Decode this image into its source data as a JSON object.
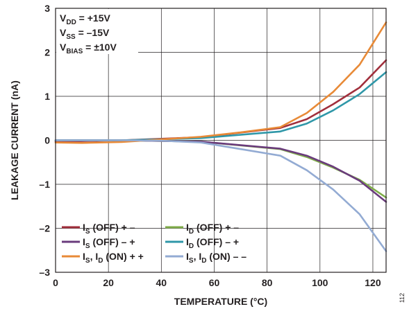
{
  "chart_data": {
    "type": "line",
    "xlabel": "TEMPERATURE (°C)",
    "ylabel": "LEAKAGE CURRENT (nA)",
    "xlim": [
      0,
      125
    ],
    "ylim": [
      -3,
      3
    ],
    "x_ticks": [
      "0",
      "20",
      "40",
      "60",
      "80",
      "100",
      "120"
    ],
    "y_ticks": [
      "3",
      "2",
      "1",
      "0",
      "–1",
      "–2",
      "–3"
    ],
    "grid": true,
    "legend_position": "bottom-center",
    "conditions": [
      {
        "main": "V",
        "sub": "DD",
        "rest": " = +15V"
      },
      {
        "main": "V",
        "sub": "SS",
        "rest": " = –15V"
      },
      {
        "main": "V",
        "sub": "BIAS",
        "rest": " = ±10V"
      }
    ],
    "series": [
      {
        "name": "IS (OFF) + –",
        "label_parts": [
          [
            "I",
            ""
          ],
          [
            "S",
            "sub"
          ],
          [
            " (OFF) + –",
            ""
          ]
        ],
        "color": "#a12f3c",
        "x": [
          0,
          25,
          55,
          85,
          95,
          105,
          115,
          125
        ],
        "y": [
          -0.03,
          0.0,
          0.07,
          0.28,
          0.48,
          0.82,
          1.2,
          1.82
        ]
      },
      {
        "name": "ID (OFF) + –",
        "label_parts": [
          [
            "I",
            ""
          ],
          [
            "D",
            "sub"
          ],
          [
            " (OFF) + –",
            ""
          ]
        ],
        "color": "#7fad4a",
        "x": [
          0,
          25,
          55,
          85,
          95,
          105,
          115,
          125
        ],
        "y": [
          0.0,
          0.0,
          -0.03,
          -0.2,
          -0.38,
          -0.62,
          -0.9,
          -1.3
        ]
      },
      {
        "name": "IS (OFF) – +",
        "label_parts": [
          [
            "I",
            ""
          ],
          [
            "S",
            "sub"
          ],
          [
            " (OFF) – +",
            ""
          ]
        ],
        "color": "#6a3b7c",
        "x": [
          0,
          25,
          55,
          85,
          95,
          105,
          115,
          125
        ],
        "y": [
          0.0,
          0.0,
          -0.03,
          -0.19,
          -0.35,
          -0.6,
          -0.92,
          -1.4
        ]
      },
      {
        "name": "ID (OFF) – +",
        "label_parts": [
          [
            "I",
            ""
          ],
          [
            "D",
            "sub"
          ],
          [
            " (OFF) – +",
            ""
          ]
        ],
        "color": "#2f97a8",
        "x": [
          0,
          25,
          55,
          85,
          95,
          105,
          115,
          125
        ],
        "y": [
          0.0,
          0.0,
          0.05,
          0.2,
          0.38,
          0.68,
          1.05,
          1.55
        ]
      },
      {
        "name": "IS, ID (ON) + +",
        "label_parts": [
          [
            "I",
            ""
          ],
          [
            "S",
            "sub"
          ],
          [
            ", I",
            ""
          ],
          [
            "D",
            "sub"
          ],
          [
            " (ON) + +",
            ""
          ]
        ],
        "color": "#e88a37",
        "x": [
          0,
          10,
          25,
          40,
          55,
          70,
          85,
          95,
          105,
          115,
          125
        ],
        "y": [
          -0.05,
          -0.06,
          -0.04,
          0.02,
          0.08,
          0.18,
          0.3,
          0.62,
          1.1,
          1.72,
          2.68
        ]
      },
      {
        "name": "IS, ID (ON) – –",
        "label_parts": [
          [
            "I",
            ""
          ],
          [
            "S",
            "sub"
          ],
          [
            ", I",
            ""
          ],
          [
            "D",
            "sub"
          ],
          [
            " (ON) – –",
            ""
          ]
        ],
        "color": "#93abd3",
        "x": [
          0,
          25,
          40,
          55,
          70,
          85,
          95,
          105,
          115,
          125
        ],
        "y": [
          0.0,
          0.0,
          -0.01,
          -0.05,
          -0.2,
          -0.35,
          -0.68,
          -1.12,
          -1.68,
          -2.52
        ]
      }
    ],
    "figure_id": "112"
  }
}
